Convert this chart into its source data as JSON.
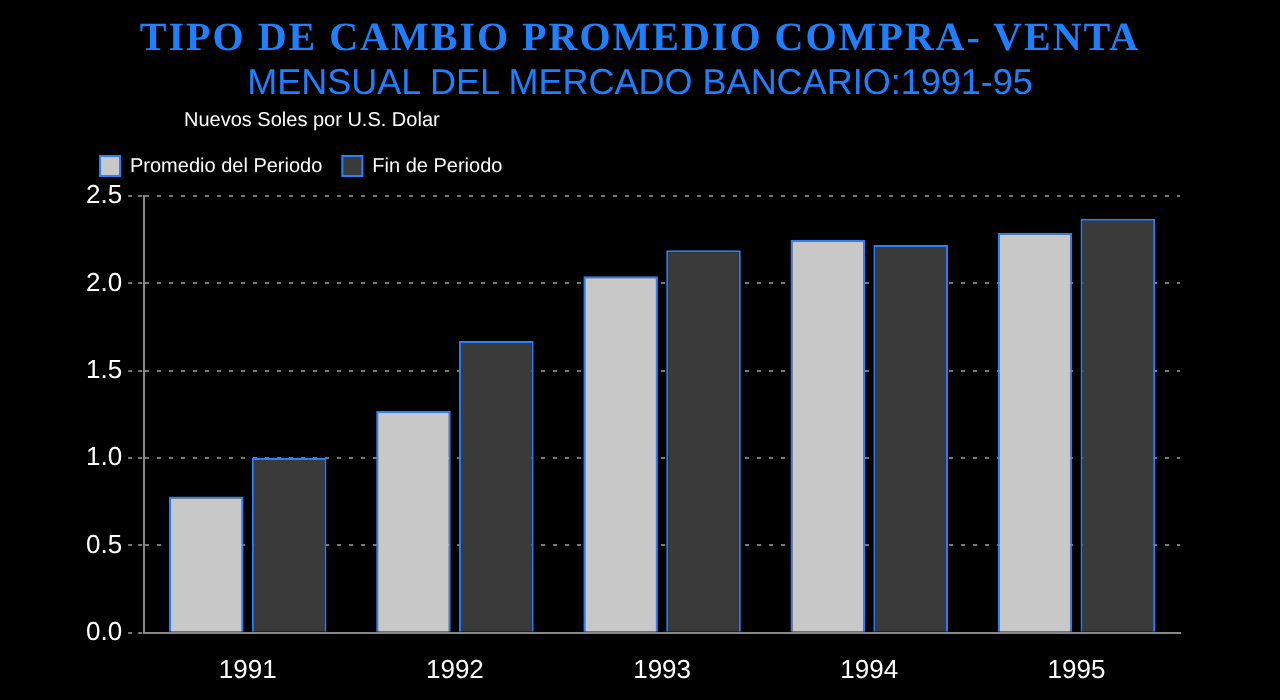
{
  "chart_data": {
    "type": "bar",
    "title": "TIPO DE CAMBIO PROMEDIO COMPRA- VENTA",
    "subtitle": "MENSUAL DEL MERCADO BANCARIO:1991-95",
    "ylabel": "Nuevos Soles por U.S. Dolar",
    "categories": [
      "1991",
      "1992",
      "1993",
      "1994",
      "1995"
    ],
    "series": [
      {
        "name": "Promedio del Periodo",
        "color": "#c8c8c8",
        "values": [
          0.78,
          1.27,
          2.04,
          2.25,
          2.29
        ]
      },
      {
        "name": "Fin de Periodo",
        "color": "#3a3a3a",
        "values": [
          1.0,
          1.67,
          2.19,
          2.22,
          2.37
        ]
      }
    ],
    "ylim": [
      0,
      2.5
    ],
    "yticks": [
      {
        "value": 0,
        "label": "0.0"
      },
      {
        "value": 0.5,
        "label": "0.5"
      },
      {
        "value": 1,
        "label": "1.0"
      },
      {
        "value": 1.5,
        "label": "1.5"
      },
      {
        "value": 2,
        "label": "2.0"
      },
      {
        "value": 2.5,
        "label": "2.5"
      }
    ],
    "grid": "y",
    "legend": "top left"
  }
}
